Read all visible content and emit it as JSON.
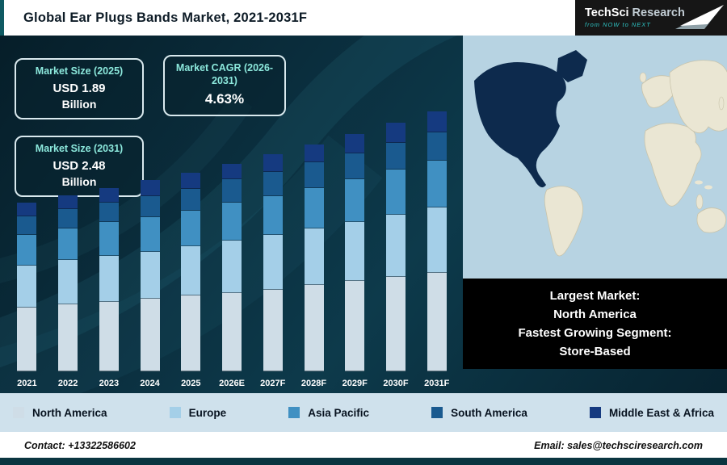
{
  "header": {
    "title": "Global Ear Plugs Bands Market, 2021-2031F"
  },
  "logo": {
    "brand_primary": "TechSci",
    "brand_secondary": "Research",
    "tagline": "from NOW to NEXT"
  },
  "info_boxes": [
    {
      "title": "Market Size (2025)",
      "value": "USD 1.89",
      "unit": "Billion"
    },
    {
      "title": "Market CAGR (2026-2031)",
      "value": "4.63%",
      "unit": ""
    },
    {
      "title": "Market Size (2031)",
      "value": "USD 2.48",
      "unit": "Billion"
    }
  ],
  "caption": {
    "lines": [
      "Largest Market:",
      "North America",
      "Fastest Growing Segment:",
      "Store-Based"
    ]
  },
  "footer": {
    "contact": "Contact: +13322586602",
    "email": "Email: sales@techsciresearch.com"
  },
  "chart_data": {
    "type": "bar",
    "stacked": true,
    "title": "Global Ear Plugs Bands Market, 2021-2031F",
    "unit": "USD Billion",
    "categories": [
      "2021",
      "2022",
      "2023",
      "2024",
      "2025",
      "2026E",
      "2027F",
      "2028F",
      "2029F",
      "2030F",
      "2031F"
    ],
    "series": [
      {
        "name": "North America",
        "color": "#cfdde7",
        "values": [
          0.61,
          0.64,
          0.66,
          0.69,
          0.72,
          0.75,
          0.78,
          0.82,
          0.86,
          0.9,
          0.94
        ]
      },
      {
        "name": "Europe",
        "color": "#a4cfe8",
        "values": [
          0.4,
          0.42,
          0.44,
          0.45,
          0.47,
          0.5,
          0.52,
          0.54,
          0.56,
          0.59,
          0.62
        ]
      },
      {
        "name": "Asia Pacific",
        "color": "#4090c2",
        "values": [
          0.29,
          0.3,
          0.32,
          0.33,
          0.34,
          0.36,
          0.37,
          0.39,
          0.41,
          0.43,
          0.45
        ]
      },
      {
        "name": "South America",
        "color": "#1a5a8f",
        "values": [
          0.18,
          0.19,
          0.19,
          0.2,
          0.21,
          0.22,
          0.23,
          0.24,
          0.25,
          0.26,
          0.27
        ]
      },
      {
        "name": "Middle East & Africa",
        "color": "#153a80",
        "values": [
          0.13,
          0.13,
          0.14,
          0.15,
          0.15,
          0.15,
          0.17,
          0.17,
          0.18,
          0.19,
          0.2
        ]
      }
    ],
    "totals": [
      1.61,
      1.68,
      1.75,
      1.82,
      1.89,
      1.98,
      2.07,
      2.16,
      2.26,
      2.37,
      2.48
    ],
    "annotations": {
      "market_size_2025": "USD 1.89 Billion",
      "market_size_2031": "USD 2.48 Billion",
      "cagr_2026_2031": "4.63%"
    },
    "legend_position": "bottom",
    "grid": false,
    "ylim": [
      0,
      2.6
    ]
  }
}
